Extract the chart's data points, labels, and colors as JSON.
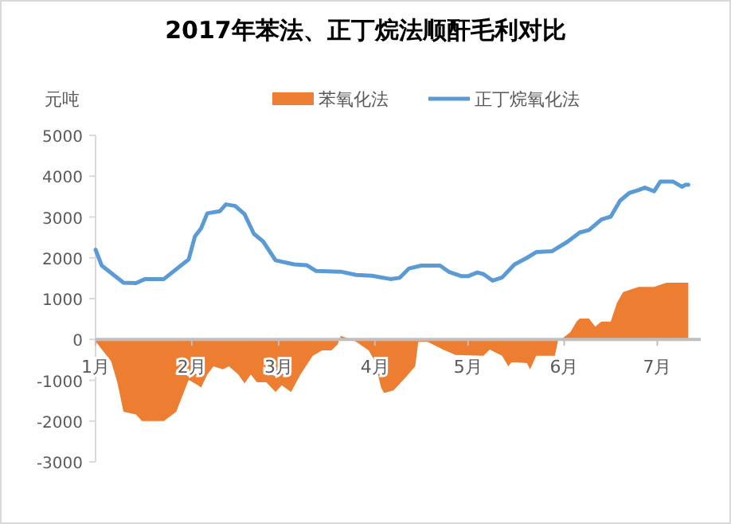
{
  "chart_data": {
    "type": "line",
    "title": "2017年苯法、正丁烷法顺酐毛利对比",
    "ylabel": "元吨",
    "legend": "top",
    "xlim": [
      "2017-01-01",
      "2017-07-15"
    ],
    "xticks": [
      {
        "value": "2017-01-01",
        "label": "1月"
      },
      {
        "value": "2017-02-01",
        "label": "2月"
      },
      {
        "value": "2017-03-01",
        "label": "3月"
      },
      {
        "value": "2017-04-01",
        "label": "4月"
      },
      {
        "value": "2017-05-01",
        "label": "5月"
      },
      {
        "value": "2017-06-01",
        "label": "6月"
      },
      {
        "value": "2017-07-01",
        "label": "7月"
      }
    ],
    "ylim": [
      -3000,
      5000
    ],
    "yticks": [
      -3000,
      -2000,
      -1000,
      0,
      1000,
      2000,
      3000,
      4000,
      5000
    ],
    "series": [
      {
        "name": "苯氧化法",
        "type": "area",
        "color": "#ed7d31",
        "x": [
          "2017-01-01",
          "2017-01-06",
          "2017-01-08",
          "2017-01-10",
          "2017-01-14",
          "2017-01-16",
          "2017-01-23",
          "2017-01-27",
          "2017-01-31",
          "2017-02-03",
          "2017-02-04",
          "2017-02-06",
          "2017-02-08",
          "2017-02-11",
          "2017-02-13",
          "2017-02-16",
          "2017-02-18",
          "2017-02-20",
          "2017-02-22",
          "2017-02-25",
          "2017-02-28",
          "2017-03-02",
          "2017-03-05",
          "2017-03-08",
          "2017-03-12",
          "2017-03-15",
          "2017-03-18",
          "2017-03-20",
          "2017-03-21",
          "2017-03-24",
          "2017-03-26",
          "2017-03-30",
          "2017-04-01",
          "2017-04-03",
          "2017-04-04",
          "2017-04-07",
          "2017-04-11",
          "2017-04-14",
          "2017-04-15",
          "2017-04-18",
          "2017-04-23",
          "2017-04-27",
          "2017-05-06",
          "2017-05-08",
          "2017-05-12",
          "2017-05-14",
          "2017-05-15",
          "2017-05-17",
          "2017-05-20",
          "2017-05-21",
          "2017-05-23",
          "2017-05-29",
          "2017-05-30",
          "2017-05-31",
          "2017-06-03",
          "2017-06-05",
          "2017-06-06",
          "2017-06-09",
          "2017-06-11",
          "2017-06-13",
          "2017-06-16",
          "2017-06-18",
          "2017-06-20",
          "2017-06-25",
          "2017-06-30",
          "2017-07-04",
          "2017-07-11"
        ],
        "values": [
          -50,
          -530,
          -1050,
          -1770,
          -1840,
          -2000,
          -2000,
          -1770,
          -990,
          -1120,
          -1180,
          -860,
          -660,
          -730,
          -660,
          -860,
          -1080,
          -860,
          -1050,
          -1050,
          -1290,
          -1120,
          -1290,
          -860,
          -400,
          -270,
          -270,
          -120,
          90,
          10,
          -60,
          -270,
          -530,
          -1180,
          -1310,
          -1250,
          -920,
          -660,
          -60,
          -60,
          -250,
          -380,
          -400,
          -250,
          -400,
          -660,
          -560,
          -560,
          -580,
          -730,
          -400,
          -400,
          -40,
          0,
          180,
          440,
          510,
          510,
          310,
          440,
          440,
          900,
          1160,
          1290,
          1290,
          1390,
          1390
        ]
      },
      {
        "name": "正丁烷氧化法",
        "type": "line",
        "color": "#5b9bd5",
        "x": [
          "2017-01-01",
          "2017-01-03",
          "2017-01-10",
          "2017-01-14",
          "2017-01-17",
          "2017-01-23",
          "2017-01-31",
          "2017-02-02",
          "2017-02-04",
          "2017-02-06",
          "2017-02-10",
          "2017-02-12",
          "2017-02-15",
          "2017-02-18",
          "2017-02-21",
          "2017-02-24",
          "2017-02-28",
          "2017-03-06",
          "2017-03-10",
          "2017-03-13",
          "2017-03-21",
          "2017-03-26",
          "2017-03-31",
          "2017-04-06",
          "2017-04-09",
          "2017-04-12",
          "2017-04-16",
          "2017-04-22",
          "2017-04-25",
          "2017-04-29",
          "2017-05-01",
          "2017-05-04",
          "2017-05-06",
          "2017-05-09",
          "2017-05-12",
          "2017-05-16",
          "2017-05-20",
          "2017-05-23",
          "2017-05-28",
          "2017-06-02",
          "2017-06-06",
          "2017-06-09",
          "2017-06-13",
          "2017-06-16",
          "2017-06-19",
          "2017-06-22",
          "2017-06-25",
          "2017-06-27",
          "2017-06-30",
          "2017-07-02",
          "2017-07-06",
          "2017-07-09",
          "2017-07-10",
          "2017-07-11"
        ],
        "values": [
          2200,
          1810,
          1390,
          1380,
          1480,
          1480,
          1960,
          2520,
          2720,
          3090,
          3140,
          3310,
          3270,
          3070,
          2590,
          2400,
          1940,
          1840,
          1820,
          1680,
          1660,
          1580,
          1560,
          1480,
          1510,
          1740,
          1810,
          1810,
          1650,
          1550,
          1550,
          1640,
          1600,
          1440,
          1520,
          1840,
          2000,
          2140,
          2160,
          2390,
          2620,
          2680,
          2940,
          3010,
          3400,
          3590,
          3660,
          3720,
          3630,
          3870,
          3870,
          3740,
          3790,
          3790
        ]
      }
    ]
  }
}
